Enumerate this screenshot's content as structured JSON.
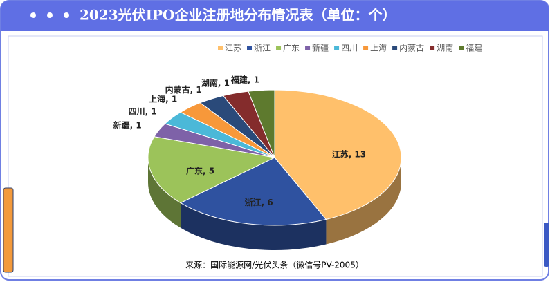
{
  "chart_data": {
    "type": "pie",
    "title": "2023光伏IPO企业注册地分布情况表（单位：个）",
    "source": "来源：国际能源网/光伏头条（微信号PV-2005）",
    "categories": [
      "江苏",
      "浙江",
      "广东",
      "新疆",
      "四川",
      "上海",
      "内蒙古",
      "湖南",
      "福建"
    ],
    "values": [
      13,
      6,
      5,
      1,
      1,
      1,
      1,
      1,
      1
    ],
    "value_labels": [
      "江苏, 13",
      "浙江, 6",
      "广东, 5",
      "新疆, 1",
      "四川, 1",
      "上海, 1",
      "内蒙古, 1",
      "湖南, 1",
      "福建, 1"
    ],
    "colors": [
      "#ffc06b",
      "#2f52a0",
      "#9cc35a",
      "#7e62a8",
      "#4bb8d8",
      "#f7983a",
      "#2a4a7a",
      "#842c2c",
      "#5e7a2e"
    ],
    "legend": "top"
  }
}
